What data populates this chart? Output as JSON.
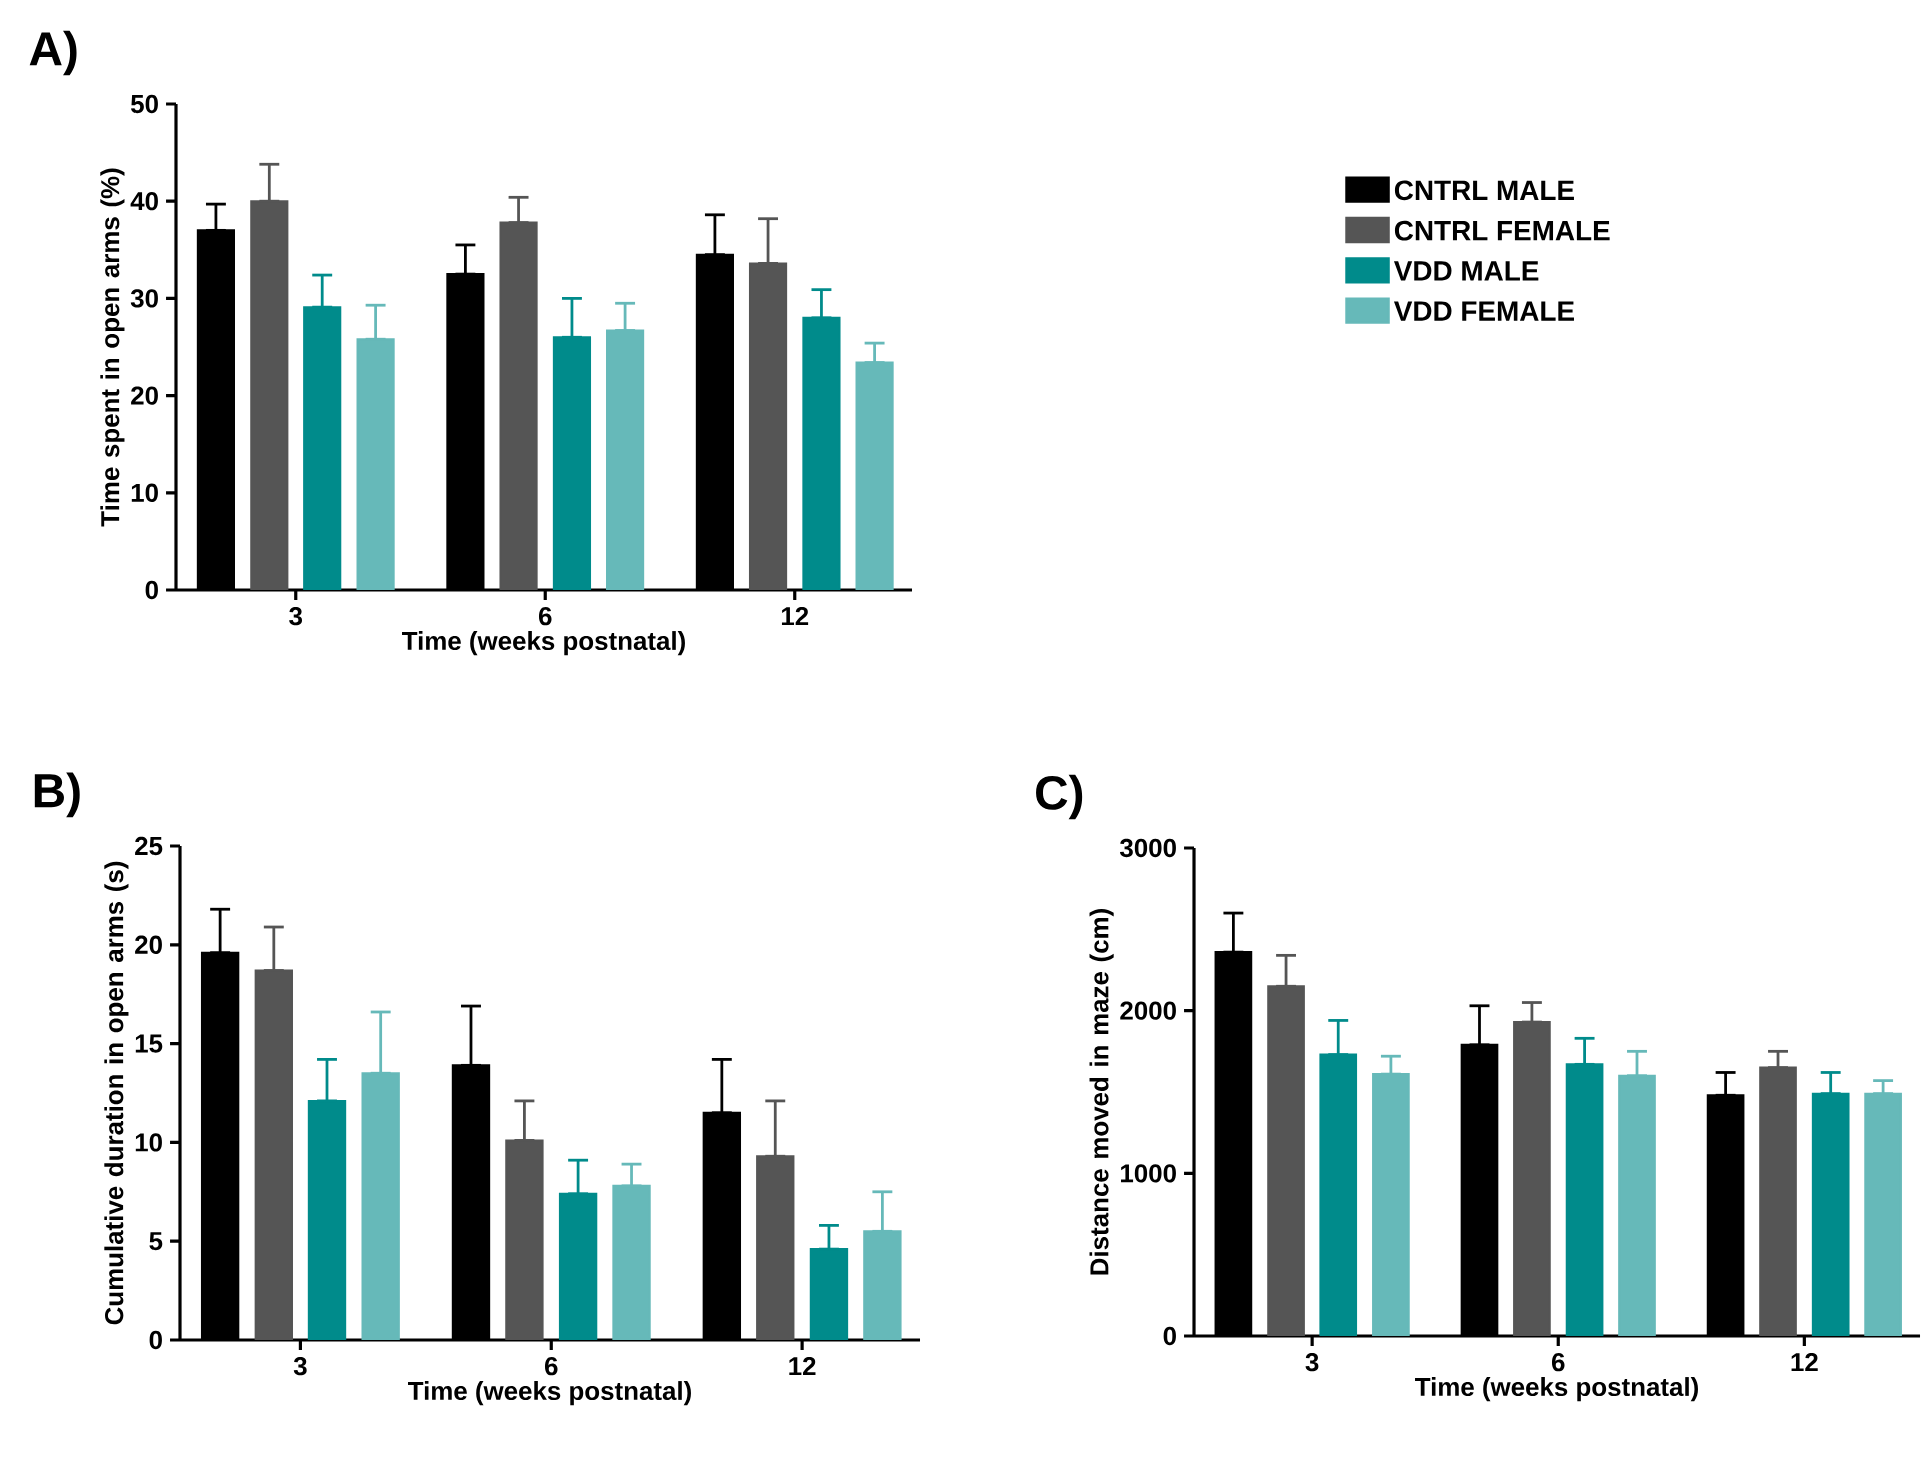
{
  "chart_data": [
    {
      "type": "bar",
      "title": "A)",
      "xlabel": "Time (weeks postnatal)",
      "ylabel": "Time spent in open arms (%)",
      "categories": [
        "3",
        "6",
        "12"
      ],
      "ylim": [
        0,
        50
      ],
      "yticks": [
        0,
        10,
        20,
        30,
        40,
        50
      ],
      "legend": "right",
      "series": [
        {
          "name": "CNTRL MALE",
          "color": "#000000",
          "values": [
            37.0,
            32.5,
            34.5
          ],
          "errors": [
            [
              37.0,
              39.7
            ],
            [
              32.5,
              35.5
            ],
            [
              34.5,
              38.6
            ]
          ]
        },
        {
          "name": "CNTRL FEMALE",
          "color": "#555555",
          "values": [
            40.0,
            37.8,
            33.6
          ],
          "errors": [
            [
              40.0,
              43.8
            ],
            [
              37.8,
              40.4
            ],
            [
              33.6,
              38.2
            ]
          ]
        },
        {
          "name": "VDD MALE",
          "color": "#008b8b",
          "values": [
            29.1,
            26.0,
            28.0
          ],
          "errors": [
            [
              29.1,
              32.4
            ],
            [
              26.0,
              30.0
            ],
            [
              28.0,
              30.9
            ]
          ]
        },
        {
          "name": "VDD FEMALE",
          "color": "#66b9b9",
          "values": [
            25.8,
            26.7,
            23.4
          ],
          "errors": [
            [
              25.8,
              29.3
            ],
            [
              26.7,
              29.5
            ],
            [
              23.4,
              25.4
            ]
          ]
        }
      ]
    },
    {
      "type": "bar",
      "title": "B)",
      "xlabel": "Time (weeks postnatal)",
      "ylabel": "Cumulative duration in open arms (s)",
      "categories": [
        "3",
        "6",
        "12"
      ],
      "ylim": [
        0,
        25
      ],
      "yticks": [
        0,
        5,
        10,
        15,
        20,
        25
      ],
      "series": [
        {
          "color": "#000000",
          "values": [
            19.6,
            13.9,
            11.5
          ],
          "errors": [
            [
              19.6,
              21.8
            ],
            [
              13.9,
              16.9
            ],
            [
              11.5,
              14.2
            ]
          ]
        },
        {
          "color": "#555555",
          "values": [
            18.7,
            10.1,
            9.3
          ],
          "errors": [
            [
              18.7,
              20.9
            ],
            [
              10.1,
              12.1
            ],
            [
              9.3,
              12.1
            ]
          ]
        },
        {
          "color": "#008b8b",
          "values": [
            12.1,
            7.4,
            4.6
          ],
          "errors": [
            [
              12.1,
              14.2
            ],
            [
              7.4,
              9.1
            ],
            [
              4.6,
              5.8
            ]
          ]
        },
        {
          "color": "#66b9b9",
          "values": [
            13.5,
            7.8,
            5.5
          ],
          "errors": [
            [
              13.5,
              16.6
            ],
            [
              7.8,
              8.9
            ],
            [
              5.5,
              7.5
            ]
          ]
        }
      ]
    },
    {
      "type": "bar",
      "title": "C)",
      "xlabel": "Time (weeks postnatal)",
      "ylabel": "Distance moved in maze (cm)",
      "categories": [
        "3",
        "6",
        "12"
      ],
      "ylim": [
        0,
        3000
      ],
      "yticks": [
        0,
        1000,
        2000,
        3000
      ],
      "series": [
        {
          "color": "#000000",
          "values": [
            2360,
            1790,
            1480
          ],
          "errors": [
            [
              2360,
              2600
            ],
            [
              1790,
              2030
            ],
            [
              1480,
              1620
            ]
          ]
        },
        {
          "color": "#555555",
          "values": [
            2150,
            1930,
            1650
          ],
          "errors": [
            [
              2150,
              2340
            ],
            [
              1930,
              2050
            ],
            [
              1650,
              1750
            ]
          ]
        },
        {
          "color": "#008b8b",
          "values": [
            1730,
            1670,
            1490
          ],
          "errors": [
            [
              1730,
              1940
            ],
            [
              1670,
              1830
            ],
            [
              1490,
              1620
            ]
          ]
        },
        {
          "color": "#66b9b9",
          "values": [
            1610,
            1600,
            1490
          ],
          "errors": [
            [
              1610,
              1720
            ],
            [
              1600,
              1750
            ],
            [
              1490,
              1570
            ]
          ]
        }
      ]
    }
  ]
}
